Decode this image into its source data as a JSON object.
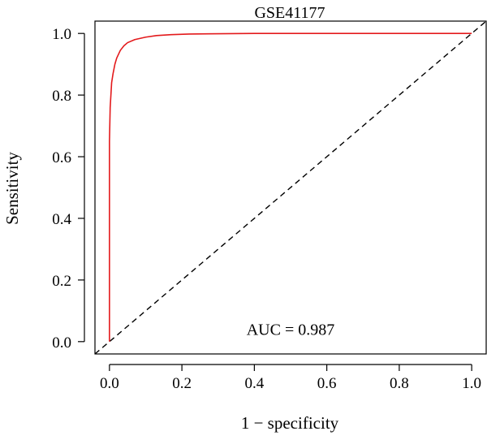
{
  "chart_data": {
    "type": "line",
    "title": "GSE41177",
    "xlabel": "1 − specificity",
    "ylabel": "Sensitivity",
    "xlim": [
      -0.04,
      1.04
    ],
    "ylim": [
      -0.04,
      1.04
    ],
    "x_ticks": [
      0.0,
      0.2,
      0.4,
      0.6,
      0.8,
      1.0
    ],
    "x_tick_labels": [
      "0.0",
      "0.2",
      "0.4",
      "0.6",
      "0.8",
      "1.0"
    ],
    "y_ticks": [
      0.0,
      0.2,
      0.4,
      0.6,
      0.8,
      1.0
    ],
    "y_tick_labels": [
      "0.0",
      "0.2",
      "0.4",
      "0.6",
      "0.8",
      "1.0"
    ],
    "grid": false,
    "series": [
      {
        "color": "#e31a1c",
        "x": [
          0.0,
          0.0,
          0.0,
          0.0,
          0.0,
          0.002,
          0.004,
          0.006,
          0.01,
          0.015,
          0.02,
          0.03,
          0.04,
          0.05,
          0.07,
          0.1,
          0.13,
          0.17,
          0.22,
          0.3,
          0.4,
          0.5,
          0.7,
          1.0
        ],
        "y": [
          0.0,
          0.25,
          0.5,
          0.6,
          0.65,
          0.76,
          0.8,
          0.84,
          0.87,
          0.9,
          0.92,
          0.945,
          0.96,
          0.97,
          0.98,
          0.988,
          0.993,
          0.996,
          0.998,
          0.999,
          1.0,
          1.0,
          1.0,
          1.0
        ],
        "line_style": "solid"
      },
      {
        "color": "#000000",
        "x": [
          -0.04,
          1.04
        ],
        "y": [
          -0.04,
          1.04
        ],
        "line_style": "dashed"
      }
    ],
    "annotations": [
      {
        "text": "AUC = 0.987",
        "x": 0.5,
        "y": 0.04
      }
    ]
  }
}
